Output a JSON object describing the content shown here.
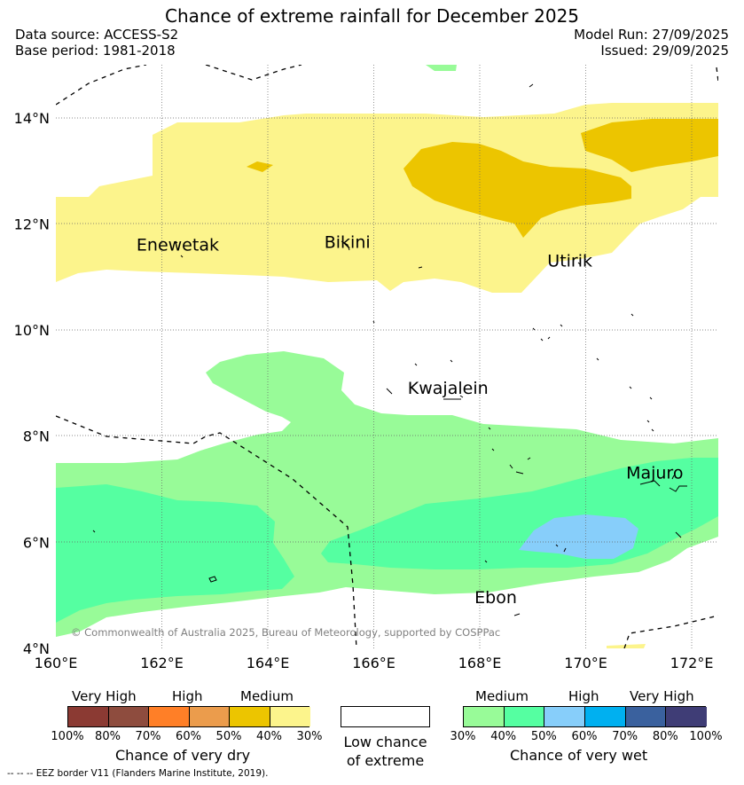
{
  "header": {
    "title": "Chance of extreme rainfall for December 2025",
    "data_source": "Data source: ACCESS-S2",
    "base_period": "Base period: 1981-2018",
    "model_run": "Model Run: 27/09/2025",
    "issued": "Issued: 29/09/2025"
  },
  "map": {
    "lon_range": [
      160,
      172.5
    ],
    "lat_range": [
      4,
      15
    ],
    "lon_ticks": [
      "160°E",
      "162°E",
      "164°E",
      "166°E",
      "168°E",
      "170°E",
      "172°E"
    ],
    "lat_ticks": [
      "4°N",
      "6°N",
      "8°N",
      "10°N",
      "12°N",
      "14°N"
    ],
    "places": [
      {
        "name": "Enewetak",
        "lon": 162.3,
        "lat": 11.5
      },
      {
        "name": "Bikini",
        "lon": 165.5,
        "lat": 11.55
      },
      {
        "name": "Utirik",
        "lon": 169.7,
        "lat": 11.2
      },
      {
        "name": "Kwajalein",
        "lon": 167.4,
        "lat": 8.8
      },
      {
        "name": "Majuro",
        "lon": 171.3,
        "lat": 7.2
      },
      {
        "name": "Ebon",
        "lon": 168.3,
        "lat": 4.85
      }
    ],
    "copyright": "© Commonwealth of Australia 2025, Bureau of Meteorology, supported by COSPPac",
    "eez_note": "--  --  -- EEZ border V11 (Flanders Marine Institute, 2019)."
  },
  "legend": {
    "dry": {
      "categories": [
        "Very High",
        "High",
        "Medium"
      ],
      "percent_labels": [
        "100%",
        "80%",
        "70%",
        "60%",
        "50%",
        "40%",
        "30%"
      ],
      "colors": [
        "#8b3a33",
        "#8e4c3e",
        "#ff7f27",
        "#eb9c4c",
        "#ecc500",
        "#fcf48c"
      ],
      "title": "Chance of very dry"
    },
    "neutral": {
      "label_line1": "Low chance",
      "label_line2": "of extreme",
      "color": "#ffffff"
    },
    "wet": {
      "categories": [
        "Medium",
        "High",
        "Very High"
      ],
      "percent_labels": [
        "30%",
        "40%",
        "50%",
        "60%",
        "70%",
        "80%",
        "100%"
      ],
      "colors": [
        "#98fb98",
        "#55ffa1",
        "#87cefa",
        "#00b0f0",
        "#3a619e",
        "#3f3d76"
      ],
      "title": "Chance of very wet"
    }
  }
}
